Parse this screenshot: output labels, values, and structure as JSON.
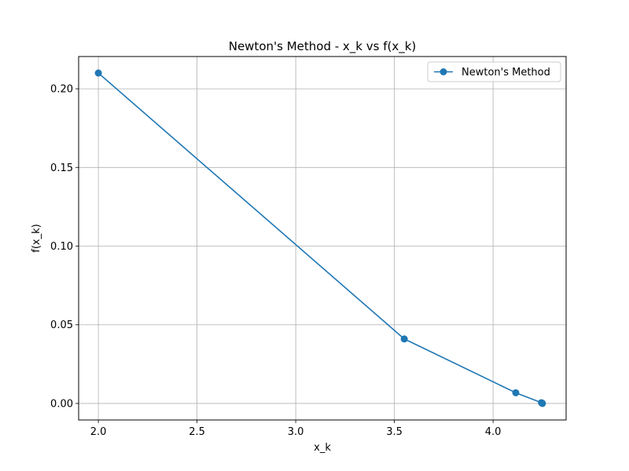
{
  "chart_data": {
    "type": "line",
    "title": "Newton's Method - x_k vs f(x_k)",
    "xlabel": "x_k",
    "ylabel": "f(x_k)",
    "xlim": [
      1.9,
      4.37
    ],
    "ylim": [
      -0.0105,
      0.2205
    ],
    "xticks": [
      2.0,
      2.5,
      3.0,
      3.5,
      4.0
    ],
    "xtick_labels": [
      "2.0",
      "2.5",
      "3.0",
      "3.5",
      "4.0"
    ],
    "yticks": [
      0.0,
      0.05,
      0.1,
      0.15,
      0.2
    ],
    "ytick_labels": [
      "0.00",
      "0.05",
      "0.10",
      "0.15",
      "0.20"
    ],
    "grid": true,
    "legend_position": "top-right",
    "series": [
      {
        "name": "Newton's Method",
        "color": "#1f77b4",
        "marker": "circle",
        "x": [
          2.0,
          3.55,
          4.115,
          4.245,
          4.2495,
          4.25
        ],
        "y": [
          0.21,
          0.041,
          0.0068,
          0.0005,
          0.0001,
          0.0
        ]
      }
    ]
  }
}
